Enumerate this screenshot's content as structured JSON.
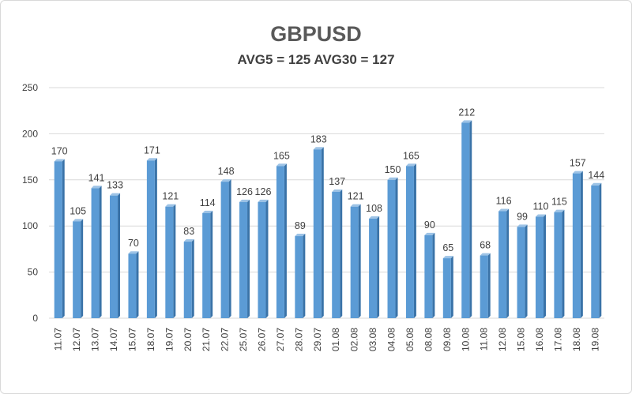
{
  "chart_data": {
    "type": "bar",
    "title": "GBPUSD",
    "subtitle": "AVG5 = 125 AVG30 = 127",
    "xlabel": "",
    "ylabel": "",
    "ylim": [
      0,
      250
    ],
    "yticks": [
      "0",
      "50",
      "100",
      "150",
      "200",
      "250"
    ],
    "grid": true,
    "categories": [
      "11.07",
      "12.07",
      "13.07",
      "14.07",
      "15.07",
      "18.07",
      "19.07",
      "20.07",
      "21.07",
      "22.07",
      "25.07",
      "26.07",
      "27.07",
      "28.07",
      "29.07",
      "01.08",
      "02.08",
      "03.08",
      "04.08",
      "05.08",
      "08.08",
      "09.08",
      "10.08",
      "11.08",
      "12.08",
      "15.08",
      "16.08",
      "17.08",
      "18.08",
      "19.08"
    ],
    "values": [
      170,
      105,
      141,
      133,
      70,
      171,
      121,
      83,
      114,
      148,
      126,
      126,
      165,
      89,
      183,
      137,
      121,
      108,
      150,
      165,
      90,
      65,
      212,
      68,
      116,
      99,
      110,
      115,
      157,
      144
    ],
    "colors": {
      "bar": "#5b9bd5",
      "bar_dark": "#3a73a8",
      "bar_light": "#9dc3e6",
      "grid": "#d9d9d9",
      "text": "#404040"
    }
  }
}
